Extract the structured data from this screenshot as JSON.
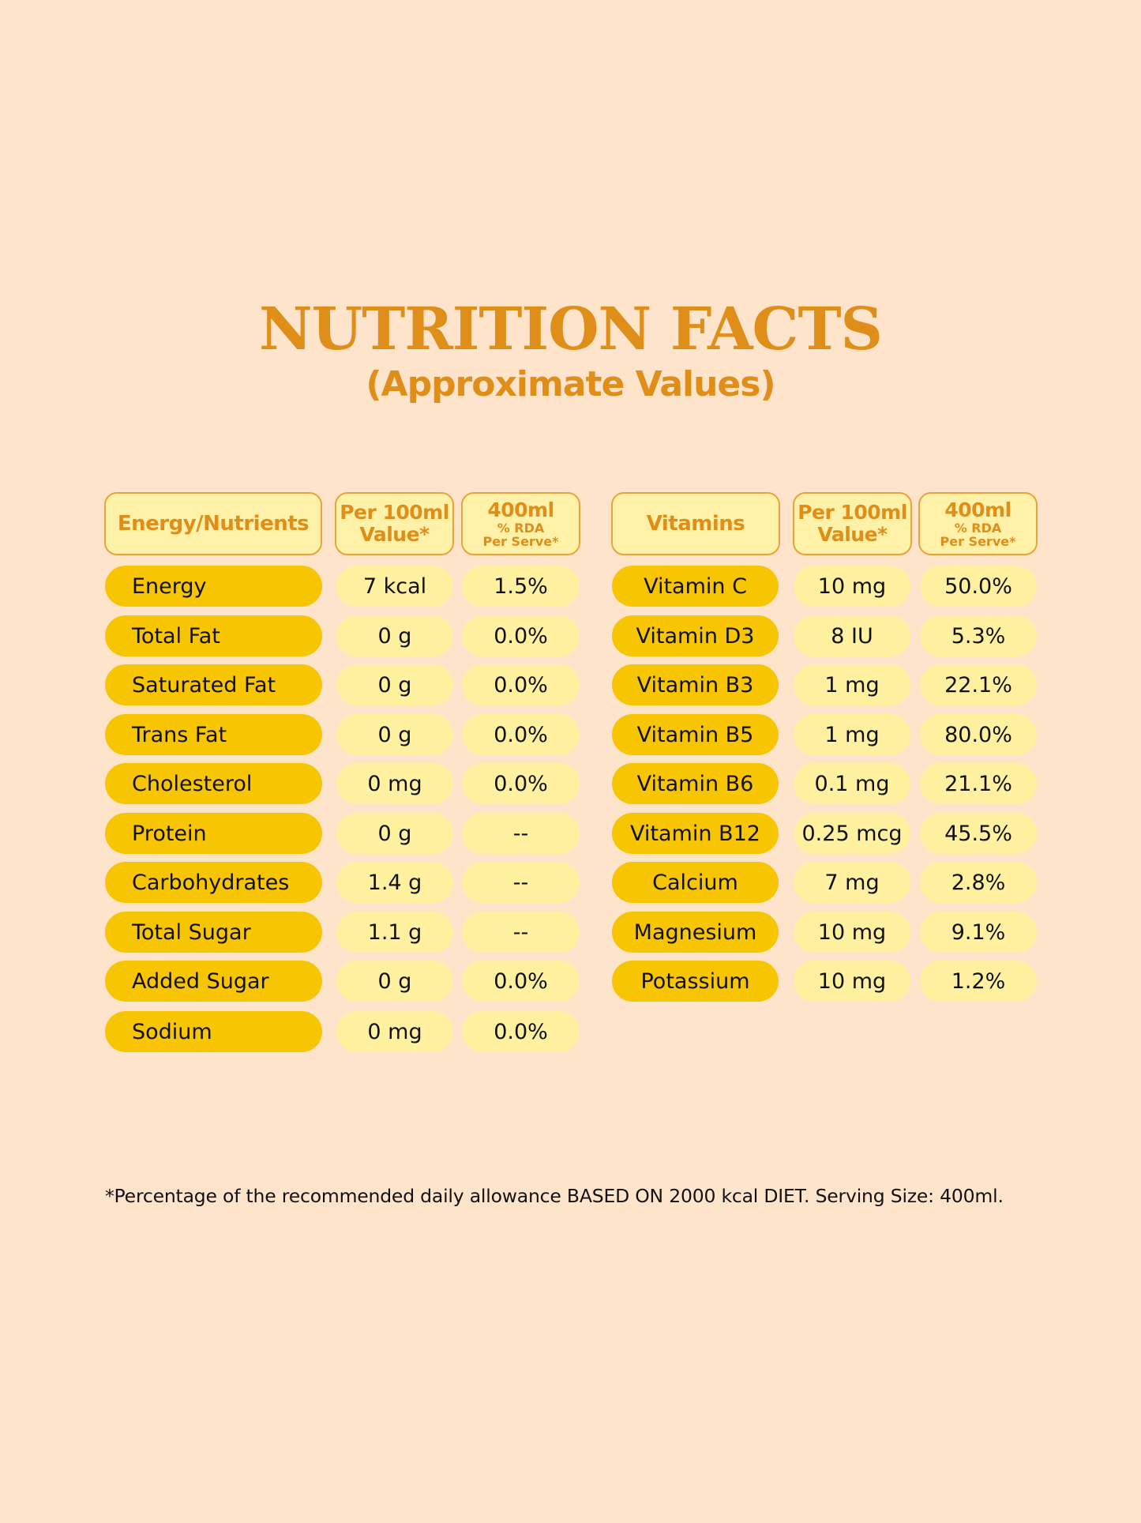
{
  "title": "NUTRITION FACTS",
  "subtitle": "(Approximate Values)",
  "left_table": {
    "headers": {
      "name": "Energy/Nutrients",
      "per100_line1": "Per 100ml",
      "per100_line2": "Value*",
      "rda_line1": "400ml",
      "rda_line2": "% RDA",
      "rda_line3": "Per Serve*"
    },
    "rows": [
      {
        "name": "Energy",
        "per100": "7 kcal",
        "rda": "1.5%"
      },
      {
        "name": "Total Fat",
        "per100": "0 g",
        "rda": "0.0%"
      },
      {
        "name": "Saturated Fat",
        "per100": "0 g",
        "rda": "0.0%"
      },
      {
        "name": "Trans Fat",
        "per100": "0 g",
        "rda": "0.0%"
      },
      {
        "name": "Cholesterol",
        "per100": "0 mg",
        "rda": "0.0%"
      },
      {
        "name": "Protein",
        "per100": "0 g",
        "rda": "--"
      },
      {
        "name": "Carbohydrates",
        "per100": "1.4 g",
        "rda": "--"
      },
      {
        "name": "Total Sugar",
        "per100": "1.1 g",
        "rda": "--"
      },
      {
        "name": "Added Sugar",
        "per100": "0 g",
        "rda": "0.0%"
      },
      {
        "name": "Sodium",
        "per100": "0 mg",
        "rda": "0.0%"
      }
    ]
  },
  "right_table": {
    "headers": {
      "name": "Vitamins",
      "per100_line1": "Per 100ml",
      "per100_line2": "Value*",
      "rda_line1": "400ml",
      "rda_line2": "% RDA",
      "rda_line3": "Per Serve*"
    },
    "rows": [
      {
        "name": "Vitamin C",
        "per100": "10 mg",
        "rda": "50.0%"
      },
      {
        "name": "Vitamin D3",
        "per100": "8 IU",
        "rda": "5.3%"
      },
      {
        "name": "Vitamin B3",
        "per100": "1 mg",
        "rda": "22.1%"
      },
      {
        "name": "Vitamin B5",
        "per100": "1 mg",
        "rda": "80.0%"
      },
      {
        "name": "Vitamin B6",
        "per100": "0.1 mg",
        "rda": "21.1%"
      },
      {
        "name": "Vitamin B12",
        "per100": "0.25 mcg",
        "rda": "45.5%"
      },
      {
        "name": "Calcium",
        "per100": "7 mg",
        "rda": "2.8%"
      },
      {
        "name": "Magnesium",
        "per100": "10 mg",
        "rda": "9.1%"
      },
      {
        "name": "Potassium",
        "per100": "10 mg",
        "rda": "1.2%"
      }
    ]
  },
  "footnote": "*Percentage of the recommended daily allowance BASED ON 2000 kcal DIET. Serving Size: 400ml.",
  "colors": {
    "background": "#FFE4CC",
    "accent": "#E08E1A",
    "name_pill": "#F8C503",
    "value_pill": "#FFF1A0"
  }
}
